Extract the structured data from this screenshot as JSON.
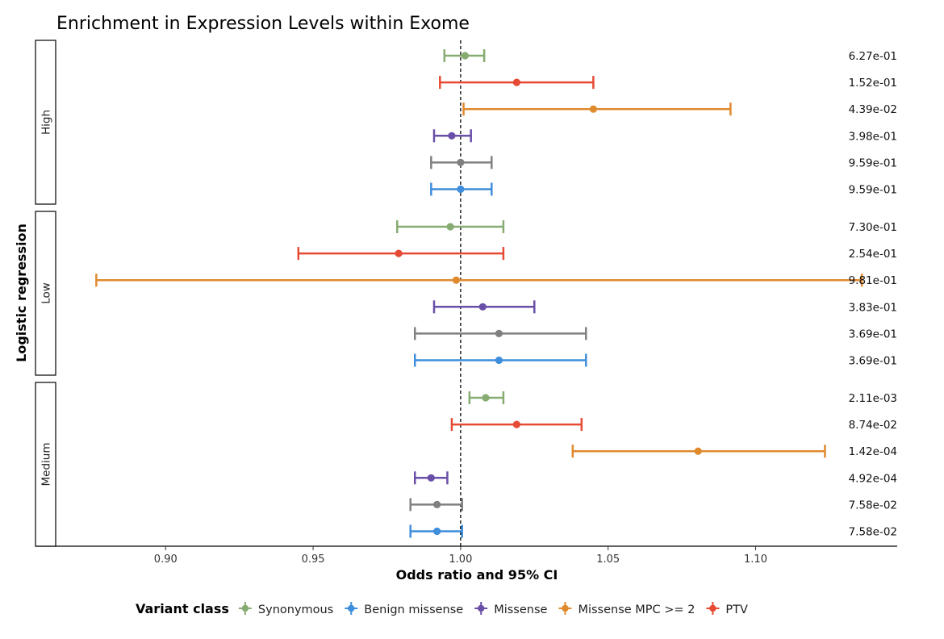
{
  "chart_data": {
    "type": "forest",
    "title": "Enrichment in Expression Levels within Exome",
    "xlabel": "Odds ratio and 95% CI",
    "ylabel": "Logistic regression",
    "xlim": [
      0.863,
      1.148
    ],
    "xticks": [
      0.9,
      0.95,
      1.0,
      1.05,
      1.1
    ],
    "xtick_labels": [
      "0.90",
      "0.95",
      "1.00",
      "1.05",
      "1.10"
    ],
    "reference_line": 1.0,
    "legend": {
      "title": "Variant class",
      "position": "bottom",
      "items": [
        {
          "label": "Synonymous",
          "color": "#86ac72"
        },
        {
          "label": "Benign missense",
          "color": "#3e8edb"
        },
        {
          "label": "Missense",
          "color": "#6a4fa8"
        },
        {
          "label": "Missense MPC >= 2",
          "color": "#e08a2e"
        },
        {
          "label": "PTV",
          "color": "#e64a35"
        }
      ]
    },
    "panels": [
      {
        "label": "High",
        "rows": [
          {
            "class": "Synonymous",
            "or": 1.0015,
            "lo": 0.9945,
            "hi": 1.008,
            "pval": "6.27e-01"
          },
          {
            "class": "PTV",
            "or": 1.019,
            "lo": 0.993,
            "hi": 1.045,
            "pval": "1.52e-01"
          },
          {
            "class": "Missense MPC >= 2",
            "or": 1.045,
            "lo": 1.001,
            "hi": 1.0915,
            "pval": "4.39e-02"
          },
          {
            "class": "Missense",
            "or": 0.997,
            "lo": 0.991,
            "hi": 1.0035,
            "pval": "3.98e-01"
          },
          {
            "class": "gray",
            "or": 1.0,
            "lo": 0.99,
            "hi": 1.0105,
            "pval": "9.59e-01"
          },
          {
            "class": "Benign missense",
            "or": 1.0,
            "lo": 0.99,
            "hi": 1.0105,
            "pval": "9.59e-01"
          }
        ]
      },
      {
        "label": "Low",
        "rows": [
          {
            "class": "Synonymous",
            "or": 0.9965,
            "lo": 0.9785,
            "hi": 1.0145,
            "pval": "7.30e-01"
          },
          {
            "class": "PTV",
            "or": 0.979,
            "lo": 0.945,
            "hi": 1.0145,
            "pval": "2.54e-01"
          },
          {
            "class": "Missense MPC >= 2",
            "or": 0.9985,
            "lo": 0.8765,
            "hi": 1.136,
            "pval": "9.81e-01"
          },
          {
            "class": "Missense",
            "or": 1.0075,
            "lo": 0.991,
            "hi": 1.025,
            "pval": "3.83e-01"
          },
          {
            "class": "gray",
            "or": 1.013,
            "lo": 0.9845,
            "hi": 1.0425,
            "pval": "3.69e-01"
          },
          {
            "class": "Benign missense",
            "or": 1.013,
            "lo": 0.9845,
            "hi": 1.0425,
            "pval": "3.69e-01"
          }
        ]
      },
      {
        "label": "Medium",
        "rows": [
          {
            "class": "Synonymous",
            "or": 1.0085,
            "lo": 1.003,
            "hi": 1.0145,
            "pval": "2.11e-03"
          },
          {
            "class": "PTV",
            "or": 1.019,
            "lo": 0.997,
            "hi": 1.041,
            "pval": "8.74e-02"
          },
          {
            "class": "Missense MPC >= 2",
            "or": 1.0805,
            "lo": 1.038,
            "hi": 1.1235,
            "pval": "1.42e-04"
          },
          {
            "class": "Missense",
            "or": 0.99,
            "lo": 0.9845,
            "hi": 0.9955,
            "pval": "4.92e-04"
          },
          {
            "class": "gray",
            "or": 0.992,
            "lo": 0.983,
            "hi": 1.0005,
            "pval": "7.58e-02"
          },
          {
            "class": "Benign missense",
            "or": 0.992,
            "lo": 0.983,
            "hi": 1.0005,
            "pval": "7.58e-02"
          }
        ]
      }
    ]
  },
  "colors": {
    "Synonymous": "#86ac72",
    "Benign missense": "#3e8edb",
    "Missense": "#6a4fa8",
    "Missense MPC >= 2": "#e08a2e",
    "PTV": "#e64a35",
    "gray": "#808080"
  }
}
